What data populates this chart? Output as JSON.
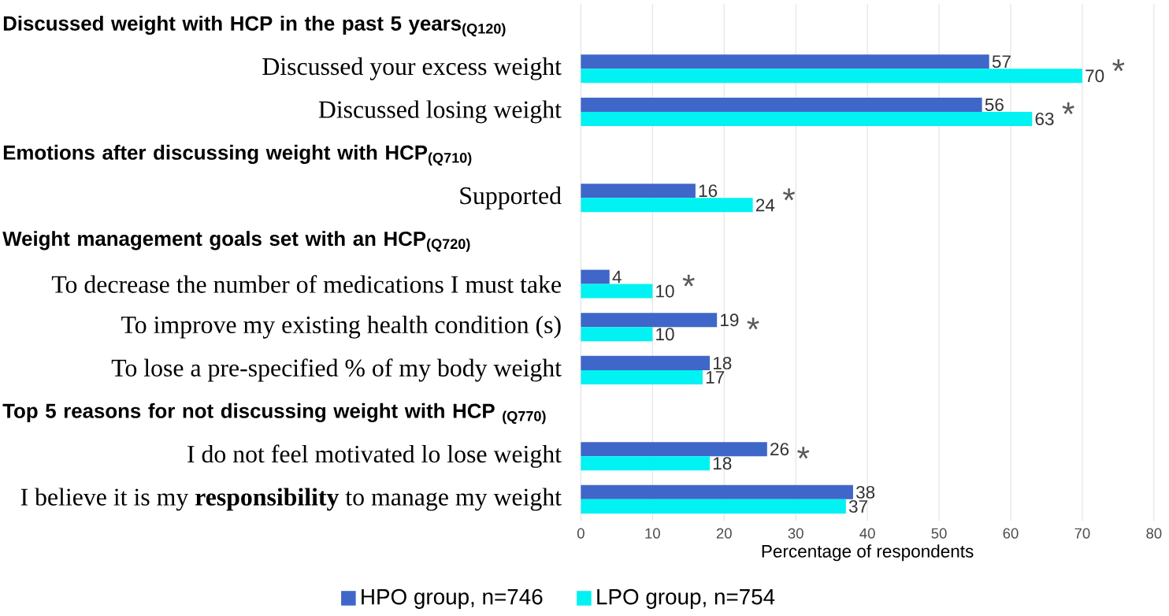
{
  "chart_data": {
    "type": "bar",
    "orientation": "horizontal",
    "xlabel": "Percentage of respondents",
    "categories": [
      null,
      "Discussed your excess weight",
      "Discussed losing weight",
      null,
      "Supported",
      null,
      "To decrease the number of medications I must take",
      "To improve my existing health condition (s)",
      "To lose a pre-specified % of my body weight",
      null,
      "I do not feel motivated lo lose weight",
      "I believe it is my **responsibility** to manage my weight"
    ],
    "series": [
      {
        "name": "HPO group, n=746",
        "color": "#3f67c9",
        "values": [
          null,
          57,
          56,
          null,
          16,
          null,
          4,
          19,
          18,
          null,
          26,
          38
        ]
      },
      {
        "name": "LPO group,  n=754",
        "color": "#00f2f2",
        "values": [
          null,
          70,
          63,
          null,
          24,
          null,
          10,
          10,
          17,
          null,
          18,
          37
        ]
      }
    ],
    "xlim": [
      0,
      80
    ],
    "xticks": [
      0,
      10,
      20,
      30,
      40,
      50,
      60,
      70,
      80
    ],
    "grid": "x",
    "legend": "bottom",
    "data_labels": true,
    "annotations": [
      "Discussed  weight with HCP in the past 5 years$_{(Q120)}$",
      "Emotions after discussing  weight with HCP$_{(Q710)}$",
      "Weight management goals set with an HCP$_{(Q720)}$",
      "Top 5 reasons  for not discussing  weight with HCP $_{(Q770)}$",
      {
        "text": "*",
        "x": 70,
        "y": "Discussed your excess weight"
      },
      {
        "text": "*",
        "x": 63,
        "y": "Discussed losing weight"
      },
      {
        "text": "*",
        "x": 24,
        "y": "Supported"
      },
      {
        "text": "*",
        "x": 10,
        "y": "To decrease the number of medications I must take"
      },
      {
        "text": "*",
        "x": 19,
        "y": "To improve my existing health condition (s)"
      },
      {
        "text": "*",
        "x": 26,
        "y": "I do not feel motivated lo lose weight"
      }
    ]
  }
}
